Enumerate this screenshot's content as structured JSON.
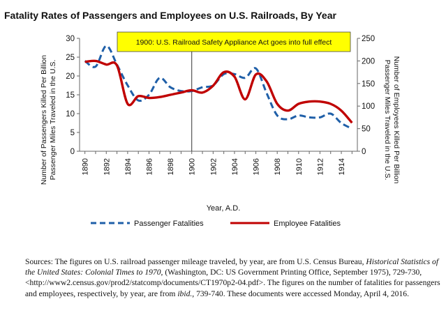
{
  "chart_data": {
    "type": "line",
    "title": "Fatality Rates of Passengers and Employees on U.S. Railroads, By Year",
    "xlabel": "Year, A.D.",
    "ylabel_left": "Number of Passengers Killed Per Billion Passenger Miles Traveled in the U.S.",
    "ylabel_right": "Number of Employees Killed Per Billion Passenger Miles Traveled in the U.S.",
    "ylabel_left_lines": [
      "Number of Passengers Killed  Per Billion",
      "Passenger Miles Traveled in the U.S."
    ],
    "ylabel_right_lines": [
      "Number of Employees Killed Per Billion",
      "Passenger Miles Traveled in the U.S."
    ],
    "xlim": [
      1889.5,
      1915.5
    ],
    "ylim_left": [
      0,
      30
    ],
    "ylim_right": [
      0,
      250
    ],
    "yticks_left": [
      0,
      5,
      10,
      15,
      20,
      25,
      30
    ],
    "yticks_right": [
      0,
      50,
      100,
      150,
      200,
      250
    ],
    "xticks": [
      1890,
      1892,
      1894,
      1896,
      1898,
      1900,
      1902,
      1904,
      1906,
      1908,
      1910,
      1912,
      1914
    ],
    "x": [
      1890,
      1891,
      1892,
      1893,
      1894,
      1895,
      1896,
      1897,
      1898,
      1899,
      1900,
      1901,
      1902,
      1903,
      1904,
      1905,
      1906,
      1907,
      1908,
      1909,
      1910,
      1911,
      1912,
      1913,
      1914,
      1915
    ],
    "series": [
      {
        "name": "Passenger Fatalities",
        "axis": "left",
        "style": "dashed",
        "color": "#1f5fa8",
        "values": [
          24.0,
          22.5,
          28.0,
          23.0,
          17.5,
          13.5,
          15.0,
          19.5,
          17.0,
          16.0,
          16.0,
          17.0,
          17.5,
          20.5,
          20.5,
          19.5,
          22.0,
          15.5,
          9.5,
          8.5,
          9.5,
          9.0,
          9.0,
          10.0,
          7.5,
          6.0
        ]
      },
      {
        "name": "Employee Fatalities",
        "axis": "right",
        "style": "solid",
        "color": "#c00000",
        "values": [
          198,
          200,
          192,
          190,
          105,
          122,
          118,
          120,
          125,
          130,
          135,
          130,
          145,
          175,
          165,
          115,
          170,
          155,
          105,
          90,
          105,
          110,
          110,
          105,
          90,
          63
        ]
      }
    ],
    "annotation": {
      "text": "1900: U.S. Railroad Safety Appliance Act goes into full effect",
      "x": 1900,
      "fill": "#ffff00"
    },
    "legend_position": "bottom"
  },
  "sources": {
    "p1": "Sources:  The figures on U.S. railroad passenger mileage traveled, by year, are from U.S. Census Bureau, ",
    "italic1": "Historical Statistics of the United States:  Colonial Times to 1970",
    "p2": ", (Washington, DC: US Government Printing Office, September 1975), 729-730, <http://www2.census.gov/prod2/statcomp/documents/CT1970p2-04.pdf>.  The figures on the number of fatalities for passengers and employees, respectively, by year, are from ",
    "italic2": "ibid.",
    "p3": ", 739-740.  These documents were accessed Monday, April 4, 2016."
  }
}
